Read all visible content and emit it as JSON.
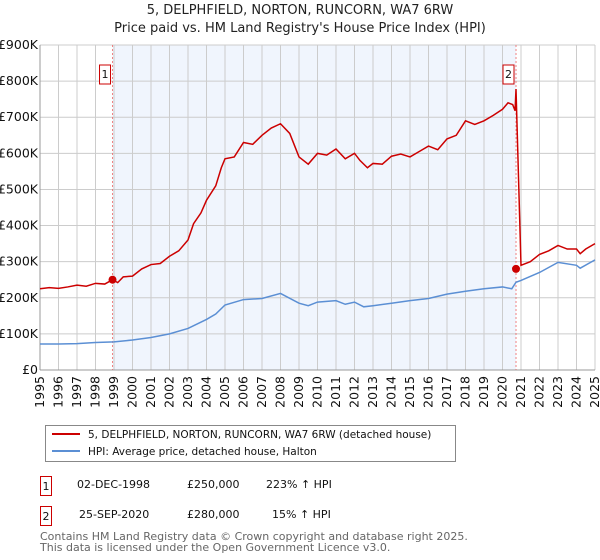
{
  "chart_data": {
    "type": "line",
    "title": "5, DELPHFIELD, NORTON, RUNCORN, WA7 6RW",
    "subtitle": "Price paid vs. HM Land Registry's House Price Index (HPI)",
    "ylim": [
      0,
      900000
    ],
    "xlim": [
      1995,
      2025
    ],
    "yticks": [
      {
        "v": 0,
        "label": "£0"
      },
      {
        "v": 100000,
        "label": "£100K"
      },
      {
        "v": 200000,
        "label": "£200K"
      },
      {
        "v": 300000,
        "label": "£300K"
      },
      {
        "v": 400000,
        "label": "£400K"
      },
      {
        "v": 500000,
        "label": "£500K"
      },
      {
        "v": 600000,
        "label": "£600K"
      },
      {
        "v": 700000,
        "label": "£700K"
      },
      {
        "v": 800000,
        "label": "£800K"
      },
      {
        "v": 900000,
        "label": "£900K"
      }
    ],
    "xticks": [
      "1995",
      "1996",
      "1997",
      "1998",
      "1999",
      "2000",
      "2001",
      "2002",
      "2003",
      "2004",
      "2005",
      "2006",
      "2007",
      "2008",
      "2009",
      "2010",
      "2011",
      "2012",
      "2013",
      "2014",
      "2015",
      "2016",
      "2017",
      "2018",
      "2019",
      "2020",
      "2021",
      "2022",
      "2023",
      "2024",
      "2025"
    ],
    "shaded_range": [
      1998.92,
      2020.73
    ],
    "series": [
      {
        "name": "5, DELPHFIELD, NORTON, RUNCORN, WA7 6RW (detached house)",
        "color": "#cc0000",
        "x": [
          1995,
          1995.5,
          1996,
          1996.5,
          1997,
          1997.5,
          1998,
          1998.5,
          1998.92,
          1999.2,
          1999.5,
          2000,
          2000.5,
          2001,
          2001.5,
          2002,
          2002.5,
          2003,
          2003.3,
          2003.7,
          2004,
          2004.5,
          2004.8,
          2005,
          2005.5,
          2006,
          2006.5,
          2007,
          2007.5,
          2008,
          2008.5,
          2009,
          2009.5,
          2010,
          2010.5,
          2011,
          2011.5,
          2012,
          2012.3,
          2012.7,
          2013,
          2013.5,
          2014,
          2014.5,
          2015,
          2015.5,
          2016,
          2016.5,
          2017,
          2017.5,
          2018,
          2018.5,
          2019,
          2019.5,
          2020,
          2020.3,
          2020.55,
          2020.68,
          2020.73,
          2021,
          2021.5,
          2022,
          2022.5,
          2023,
          2023.5,
          2024,
          2024.2,
          2024.5,
          2025
        ],
        "y": [
          225000,
          228000,
          226000,
          230000,
          235000,
          232000,
          240000,
          238000,
          250000,
          242000,
          258000,
          260000,
          280000,
          292000,
          295000,
          315000,
          330000,
          360000,
          405000,
          435000,
          470000,
          510000,
          560000,
          585000,
          590000,
          630000,
          625000,
          650000,
          670000,
          682000,
          655000,
          590000,
          570000,
          600000,
          595000,
          612000,
          585000,
          600000,
          580000,
          560000,
          572000,
          570000,
          592000,
          598000,
          590000,
          605000,
          620000,
          610000,
          640000,
          650000,
          690000,
          680000,
          690000,
          705000,
          722000,
          740000,
          735000,
          718000,
          778000,
          290000,
          300000,
          320000,
          330000,
          345000,
          335000,
          335000,
          322000,
          335000,
          350000
        ]
      },
      {
        "name": "HPI: Average price, detached house, Halton",
        "color": "#5b8fd4",
        "x": [
          1995,
          1996,
          1997,
          1998,
          1999,
          2000,
          2001,
          2002,
          2003,
          2004,
          2004.5,
          2005,
          2006,
          2007,
          2008,
          2009,
          2009.5,
          2010,
          2011,
          2011.5,
          2012,
          2012.5,
          2013,
          2014,
          2015,
          2016,
          2017,
          2018,
          2019,
          2020,
          2020.5,
          2020.73,
          2021,
          2022,
          2023,
          2024,
          2024.2,
          2025
        ],
        "y": [
          72000,
          72000,
          73000,
          76000,
          78000,
          83000,
          90000,
          100000,
          115000,
          140000,
          155000,
          180000,
          195000,
          198000,
          212000,
          185000,
          178000,
          188000,
          192000,
          182000,
          188000,
          175000,
          178000,
          185000,
          192000,
          198000,
          210000,
          218000,
          225000,
          230000,
          225000,
          243000,
          248000,
          270000,
          298000,
          290000,
          282000,
          305000
        ]
      }
    ],
    "sales": [
      {
        "n": "1",
        "x": 1998.92,
        "y": 250000
      },
      {
        "n": "2",
        "x": 2020.73,
        "y": 280000
      }
    ]
  },
  "legend": [
    "5, DELPHFIELD, NORTON, RUNCORN, WA7 6RW (detached house)",
    "HPI: Average price, detached house, Halton"
  ],
  "table": [
    {
      "n": "1",
      "date": "02-DEC-1998",
      "price": "£250,000",
      "hpi": "223% ↑ HPI"
    },
    {
      "n": "2",
      "date": "25-SEP-2020",
      "price": "£280,000",
      "hpi": "15% ↑ HPI"
    }
  ],
  "footer": [
    "Contains HM Land Registry data © Crown copyright and database right 2025.",
    "This data is licensed under the Open Government Licence v3.0."
  ]
}
